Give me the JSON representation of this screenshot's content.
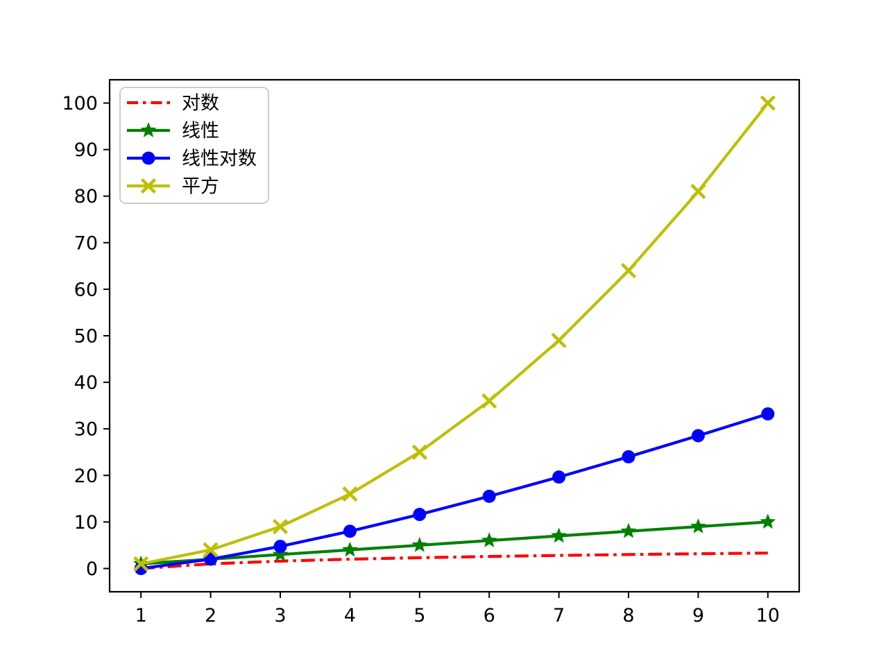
{
  "figure": {
    "background": "#ffffff",
    "axis_color": "#000000",
    "tick_font_size": 27,
    "legend_font_size": 27
  },
  "chart_data": {
    "type": "line",
    "title": "",
    "xlabel": "",
    "ylabel": "",
    "grid": false,
    "x": [
      1,
      2,
      3,
      4,
      5,
      6,
      7,
      8,
      9,
      10
    ],
    "xlim": [
      0.55,
      10.45
    ],
    "ylim": [
      -5,
      105
    ],
    "xticks": [
      1,
      2,
      3,
      4,
      5,
      6,
      7,
      8,
      9,
      10
    ],
    "yticks": [
      0,
      10,
      20,
      30,
      40,
      50,
      60,
      70,
      80,
      90,
      100
    ],
    "legend_position": "upper left",
    "series": [
      {
        "name": "对数",
        "values": [
          0,
          1,
          1.58,
          2,
          2.32,
          2.58,
          2.81,
          3,
          3.17,
          3.32
        ],
        "color": "#ff0000",
        "linestyle": "dashdot",
        "marker": "none"
      },
      {
        "name": "线性",
        "values": [
          1,
          2,
          3,
          4,
          5,
          6,
          7,
          8,
          9,
          10
        ],
        "color": "#008000",
        "linestyle": "solid",
        "marker": "star"
      },
      {
        "name": "线性对数",
        "values": [
          0,
          2,
          4.75,
          8,
          11.61,
          15.51,
          19.65,
          24,
          28.53,
          33.22
        ],
        "color": "#0000ff",
        "linestyle": "solid",
        "marker": "circle"
      },
      {
        "name": "平方",
        "values": [
          1,
          4,
          9,
          16,
          25,
          36,
          49,
          64,
          81,
          100
        ],
        "color": "#bfbf00",
        "linestyle": "solid",
        "marker": "x"
      }
    ],
    "legend_border_color": "#cccccc",
    "legend_background": "#ffffff"
  }
}
